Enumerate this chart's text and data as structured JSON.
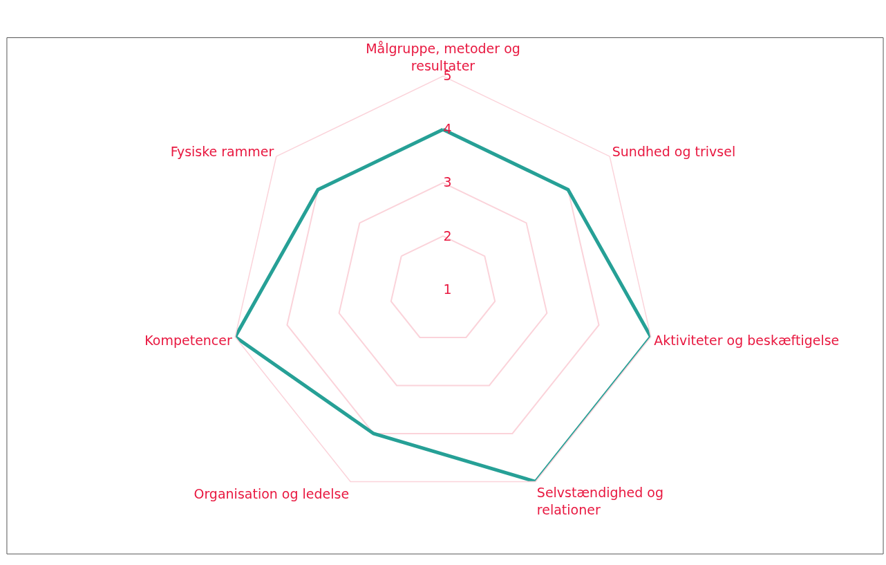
{
  "chart_data": {
    "type": "radar",
    "categories": [
      "Målgruppe, metoder og\nresultater",
      "Sundhed og trivsel",
      "Aktiviteter og beskæftigelse",
      "Selvstændighed og\nrelationer",
      "Organisation og ledelse",
      "Kompetencer",
      "Fysiske rammer"
    ],
    "series": [
      {
        "color": "#26a096",
        "values": [
          4,
          4,
          5,
          5,
          4,
          5,
          4
        ]
      }
    ],
    "ylim": [
      1,
      5
    ],
    "yticks": [
      1,
      2,
      3,
      4,
      5
    ],
    "grid": true,
    "marker": "none",
    "line_style": "solid"
  }
}
